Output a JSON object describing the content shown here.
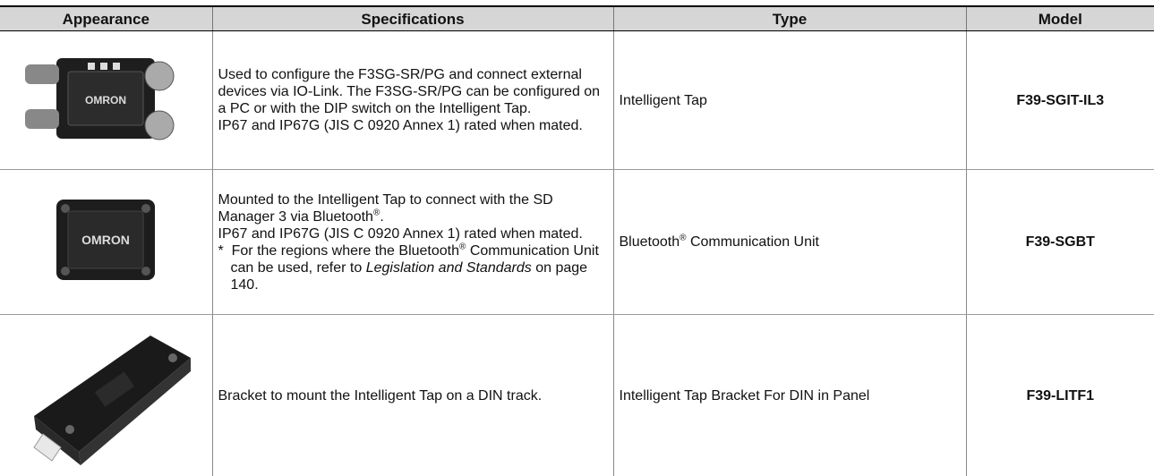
{
  "header": [
    "Appearance",
    "Specifications",
    "Type",
    "Model"
  ],
  "rows": [
    {
      "specifications": {
        "paragraphs": [
          [
            "Used to configure the F3SG-SR/PG and connect external devices via IO-Link. The F3SG-SR/PG can be configured on a PC or with the DIP switch on the Intelligent Tap."
          ],
          [
            "IP67 and IP67G (JIS C 0920 Annex 1) rated when mated."
          ]
        ]
      },
      "type": [
        "Intelligent Tap"
      ],
      "model": "F39-SGIT-IL3"
    },
    {
      "specifications": {
        "paragraphs": [
          [
            "Mounted to the Intelligent Tap to connect with the SD Manager 3 via Bluetooth",
            "®",
            "."
          ],
          [
            "IP67 and IP67G (JIS C 0920 Annex 1) rated when mated."
          ]
        ],
        "note": {
          "mark": "*",
          "text": [
            "For the regions where the Bluetooth",
            "®",
            "Communication Unit can be used, refer to",
            "Legislation and Standards",
            "on page 140."
          ]
        }
      },
      "type": [
        "Bluetooth",
        "®",
        "Communication Unit"
      ],
      "model": "F39-SGBT"
    },
    {
      "specifications": {
        "paragraphs": [
          [
            "Bracket to mount the Intelligent Tap on a DIN track."
          ]
        ]
      },
      "type": [
        "Intelligent Tap Bracket For DIN in Panel"
      ],
      "model": "F39-LITF1"
    }
  ]
}
